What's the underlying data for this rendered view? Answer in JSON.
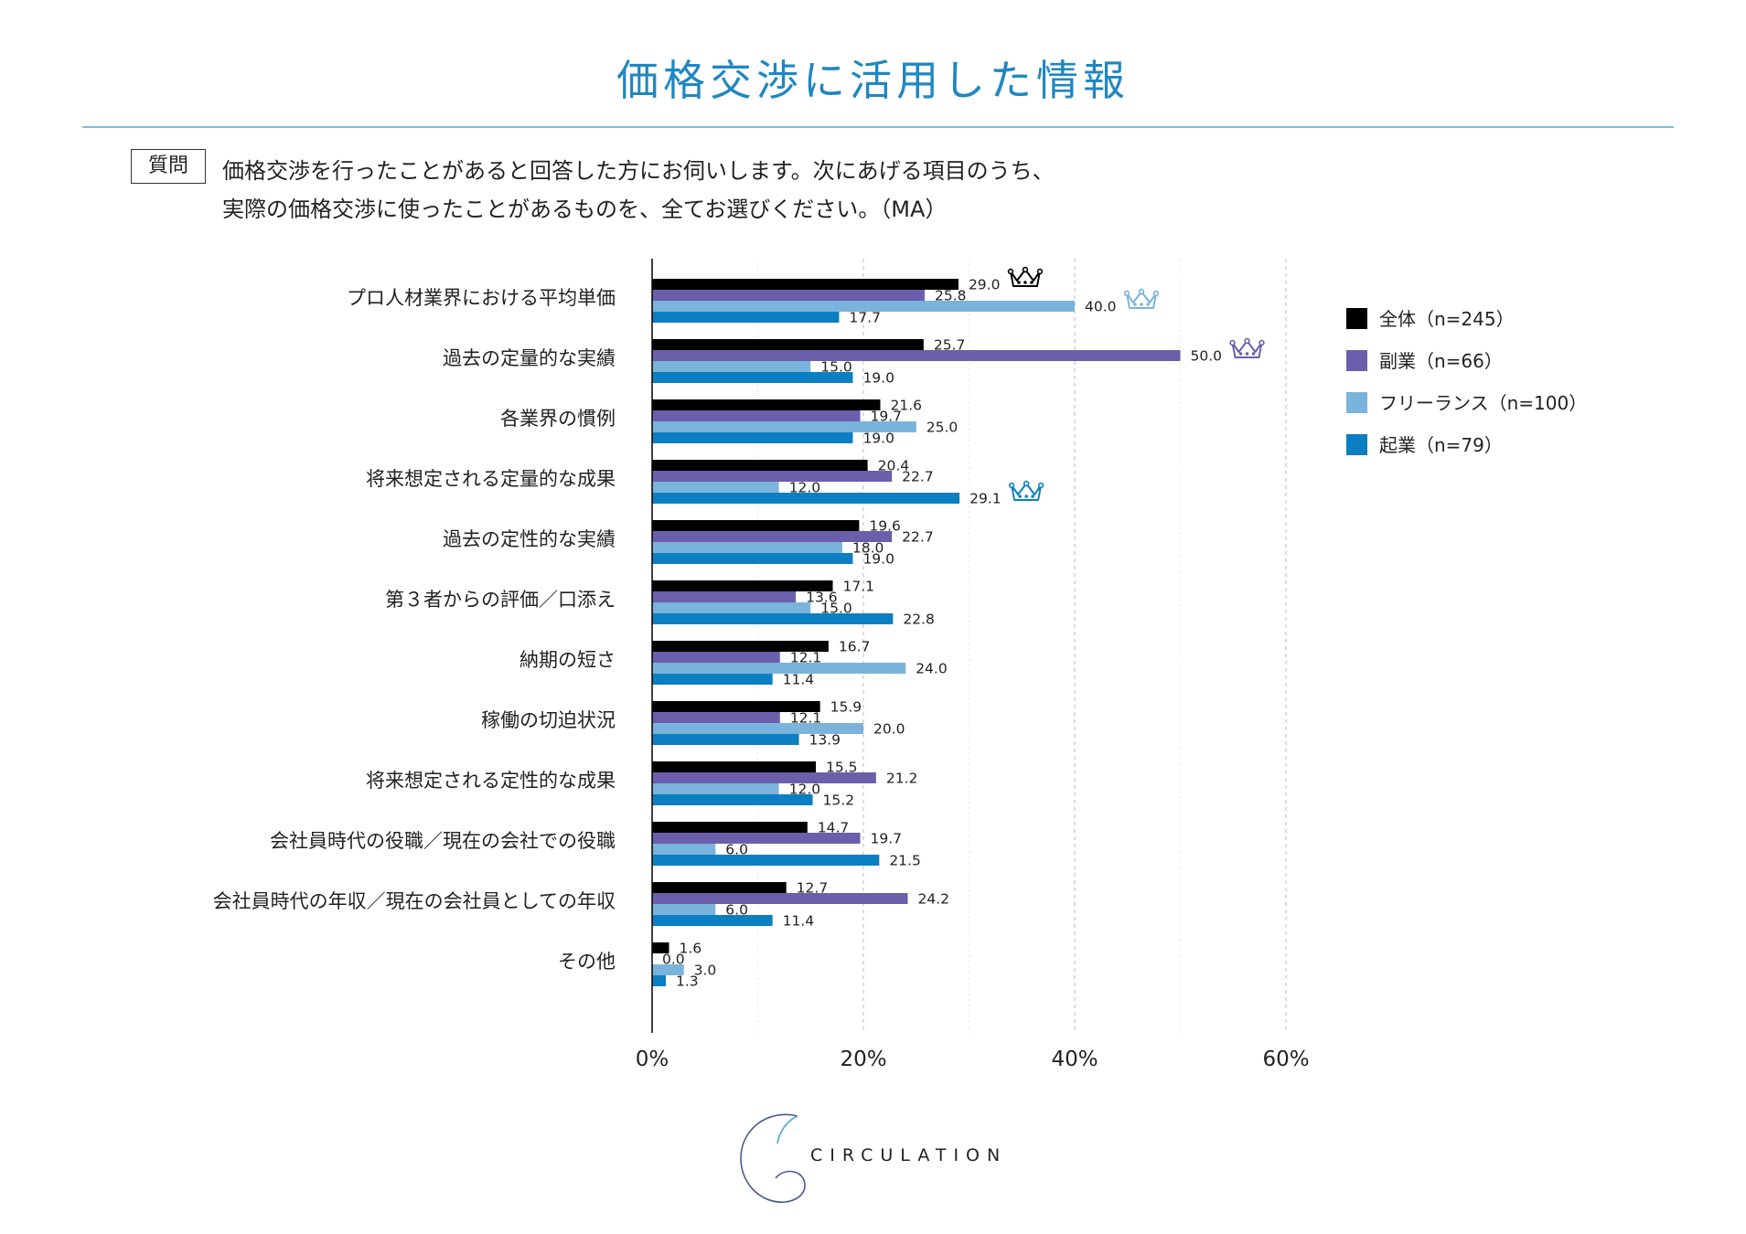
{
  "page": {
    "title": "価格交渉に活用した情報",
    "question_badge": "質問",
    "question_line1": "価格交渉を行ったことがあると回答した方にお伺いします。次にあげる項目のうち、",
    "question_line2": "実際の価格交渉に使ったことがあるものを、全てお選びください。（MA）",
    "logo_text": "CIRCULATION",
    "logo_icon": "circulation-swirl-icon",
    "crown_icon": "crown-icon"
  },
  "chart_data": {
    "type": "bar",
    "orientation": "horizontal",
    "categories": [
      "プロ人材業界における平均単価",
      "過去の定量的な実績",
      "各業界の慣例",
      "将来想定される定量的な成果",
      "過去の定性的な実績",
      "第３者からの評価／口添え",
      "納期の短さ",
      "稼働の切迫状況",
      "将来想定される定性的な成果",
      "会社員時代の役職／現在の会社での役職",
      "会社員時代の年収／現在の会社員としての年収",
      "その他"
    ],
    "series": [
      {
        "name": "全体（n=245）",
        "color": "#000000",
        "values": [
          29.0,
          25.7,
          21.6,
          20.4,
          19.6,
          17.1,
          16.7,
          15.9,
          15.5,
          14.7,
          12.7,
          1.6
        ],
        "labels": [
          "29.0",
          "25.7",
          "21.6",
          "20.4",
          "19.6",
          "17.1",
          "16.7",
          "15.9",
          "15.5",
          "14.7",
          "12.7",
          "1.6"
        ]
      },
      {
        "name": "副業（n=66）",
        "color": "#6b5fab",
        "values": [
          25.8,
          50.0,
          19.7,
          22.7,
          22.7,
          13.6,
          12.1,
          12.1,
          21.2,
          19.7,
          24.2,
          0.0
        ],
        "labels": [
          "25.8",
          "50.0",
          "19.7",
          "22.7",
          "22.7",
          "13.6",
          "12.1",
          "12.1",
          "21.2",
          "19.7",
          "24.2",
          "0.0"
        ]
      },
      {
        "name": "フリーランス（n=100）",
        "color": "#7ab3db",
        "values": [
          40.0,
          15.0,
          25.0,
          12.0,
          18.0,
          15.0,
          24.0,
          20.0,
          12.0,
          6.0,
          6.0,
          3.0
        ],
        "labels": [
          "40.0",
          "15.0",
          "25.0",
          "12.0",
          "18.0",
          "15.0",
          "24.0",
          "20.0",
          "12.0",
          "6.0",
          "6.0",
          "3.0"
        ]
      },
      {
        "name": "起業（n=79）",
        "color": "#0b7fc1",
        "values": [
          17.7,
          19.0,
          19.0,
          29.1,
          19.0,
          22.8,
          11.4,
          13.9,
          15.2,
          21.5,
          11.4,
          1.3
        ],
        "labels": [
          "17.7",
          "19.0",
          "19.0",
          "29.1",
          "19.0",
          "22.8",
          "11.4",
          "13.9",
          "15.2",
          "21.5",
          "11.4",
          "1.3"
        ]
      }
    ],
    "xlim": [
      0,
      60
    ],
    "xticks": [
      "0%",
      "20%",
      "40%",
      "60%"
    ],
    "grid": "vertical dashed",
    "legend": "top-right",
    "highlights": [
      {
        "series": 0,
        "category": 0,
        "icon": "crown-icon",
        "color": "#000000"
      },
      {
        "series": 2,
        "category": 0,
        "icon": "crown-icon",
        "color": "#7ab3db"
      },
      {
        "series": 1,
        "category": 1,
        "icon": "crown-icon",
        "color": "#6b5fab"
      },
      {
        "series": 3,
        "category": 3,
        "icon": "crown-icon",
        "color": "#0b7fc1"
      }
    ]
  }
}
